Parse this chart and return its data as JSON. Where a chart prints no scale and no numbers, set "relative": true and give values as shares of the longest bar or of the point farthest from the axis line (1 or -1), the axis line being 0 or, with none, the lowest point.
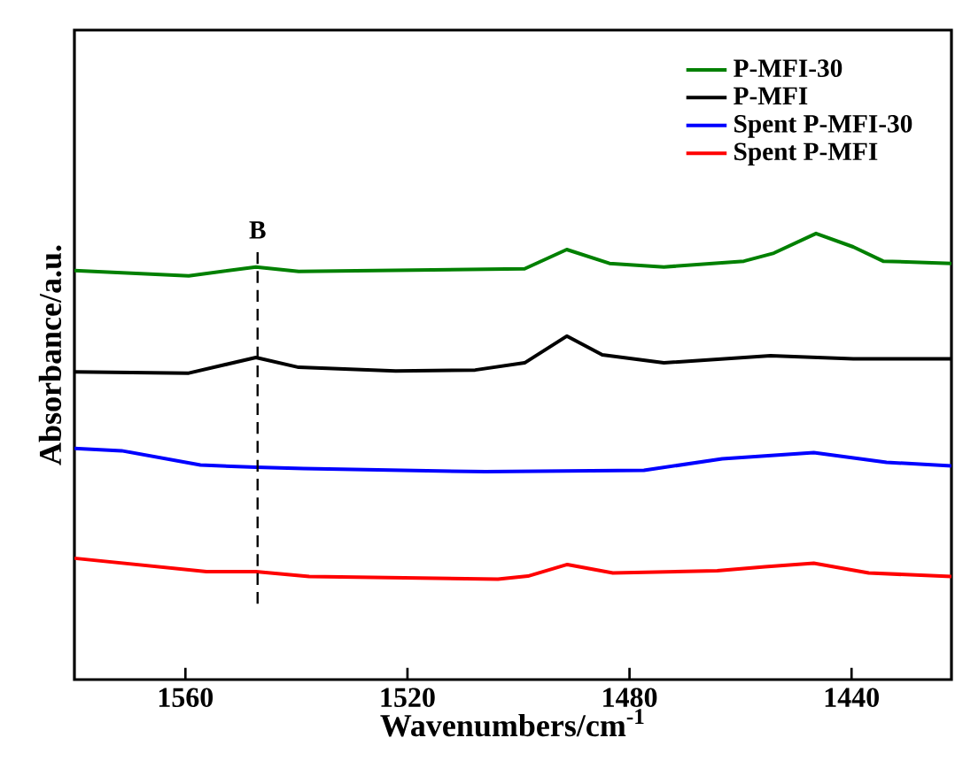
{
  "chart_data": {
    "type": "line",
    "relative": true,
    "xlabel": "Wavenumbers/cm$^{-1}$",
    "ylabel": "Absorbance/a.u.",
    "xlim": [
      1580,
      1422
    ],
    "xticks": [
      1560,
      1520,
      1480,
      1440
    ],
    "legend": "top right",
    "grid": false,
    "ref_lines": [
      {
        "axis": "x",
        "value": 1547,
        "label": "B",
        "line_style": "dashed",
        "color": "#000000"
      }
    ],
    "series": [
      {
        "name": "P-MFI-30",
        "color": "#008000",
        "x": [
          1580,
          1559.4,
          1547.3,
          1539.6,
          1498.9,
          1491.3,
          1483.6,
          1473.8,
          1459.4,
          1454,
          1446.4,
          1439.7,
          1434.3,
          1422
        ],
        "values": [
          0.917,
          0.905,
          0.925,
          0.915,
          0.921,
          0.964,
          0.933,
          0.925,
          0.938,
          0.956,
          1.0,
          0.97,
          0.938,
          0.933
        ]
      },
      {
        "name": "P-MFI",
        "color": "#000000",
        "x": [
          1580,
          1559.4,
          1547.3,
          1539.6,
          1522.1,
          1507.8,
          1498.9,
          1491.3,
          1484.9,
          1473.8,
          1454.6,
          1439.7,
          1422
        ],
        "values": [
          0.69,
          0.687,
          0.722,
          0.7,
          0.692,
          0.694,
          0.71,
          0.77,
          0.728,
          0.71,
          0.726,
          0.719,
          0.719
        ]
      },
      {
        "name": "Spent P-MFI-30",
        "color": "#0000ff",
        "x": [
          1580,
          1571.5,
          1557.3,
          1547.3,
          1538.7,
          1505.9,
          1477.4,
          1463.3,
          1446.8,
          1433.7,
          1422
        ],
        "values": [
          0.518,
          0.513,
          0.481,
          0.476,
          0.473,
          0.466,
          0.469,
          0.495,
          0.509,
          0.487,
          0.479
        ]
      },
      {
        "name": "Spent P-MFI",
        "color": "#ff0000",
        "x": [
          1580,
          1556.2,
          1547.3,
          1537.7,
          1503.7,
          1498.3,
          1491.2,
          1483,
          1464.2,
          1455.6,
          1446.8,
          1436.9,
          1422
        ],
        "values": [
          0.272,
          0.242,
          0.242,
          0.231,
          0.225,
          0.232,
          0.258,
          0.239,
          0.244,
          0.253,
          0.261,
          0.239,
          0.231
        ]
      }
    ]
  }
}
